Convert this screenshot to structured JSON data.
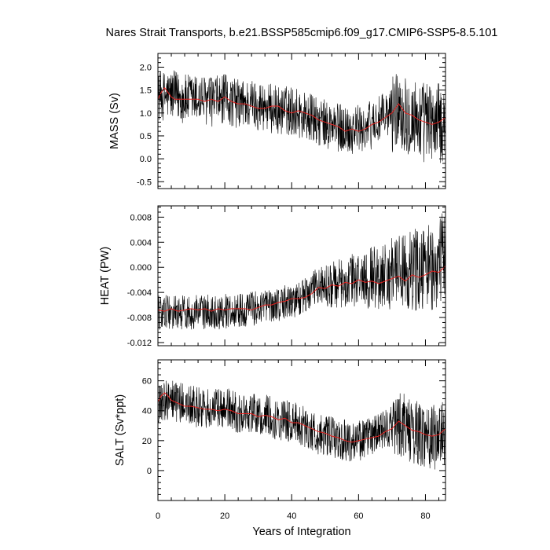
{
  "chart_data": {
    "type": "line",
    "title": "Nares Strait Transports, b.e21.BSSP585cmip6.f09_g17.CMIP6-SSP5-8.5.101",
    "xlabel": "Years of Integration",
    "xlim": [
      0,
      86
    ],
    "xticks": [
      0,
      20,
      40,
      60,
      80
    ],
    "xtick_labels": [
      "0",
      "20",
      "40",
      "60",
      "80"
    ],
    "colors": {
      "raw": "#000000",
      "smoothed": "#e8201e",
      "frame": "#000000"
    },
    "panels": [
      {
        "ylabel": "MASS (Sv)",
        "ylim": [
          -0.65,
          2.3
        ],
        "yticks": [
          -0.5,
          0.0,
          0.5,
          1.0,
          1.5,
          2.0
        ],
        "ytick_labels": [
          "-0.5",
          "0.0",
          "0.5",
          "1.0",
          "1.5",
          "2.0"
        ],
        "series": [
          {
            "x": [
              0,
              4,
              8,
              12,
              16,
              20,
              24,
              28,
              32,
              36,
              40,
              44,
              48,
              52,
              56,
              60,
              64,
              68,
              72,
              76,
              80,
              84,
              86
            ],
            "y": [
              1.35,
              1.4,
              1.3,
              1.3,
              1.25,
              1.3,
              1.2,
              1.2,
              1.15,
              1.05,
              1.05,
              0.95,
              0.8,
              0.7,
              0.65,
              0.65,
              0.75,
              0.9,
              1.15,
              0.9,
              0.8,
              0.75,
              0.85
            ]
          },
          {
            "x": [
              0,
              1,
              2,
              3,
              4,
              5,
              6,
              8,
              10,
              12,
              14,
              16,
              18,
              20,
              22,
              24,
              26,
              28,
              30,
              32,
              34,
              36,
              38,
              40,
              42,
              44,
              46,
              48,
              50,
              52,
              54,
              56,
              58,
              60,
              62,
              64,
              66,
              68,
              70,
              72,
              74,
              76,
              78,
              80,
              82,
              84,
              86
            ],
            "y": [
              1.3,
              1.45,
              1.55,
              1.45,
              1.35,
              1.3,
              1.3,
              1.3,
              1.3,
              1.3,
              1.25,
              1.3,
              1.25,
              1.35,
              1.25,
              1.2,
              1.2,
              1.15,
              1.1,
              1.1,
              1.15,
              1.15,
              1.05,
              1.0,
              1.05,
              1.0,
              0.95,
              0.85,
              0.8,
              0.75,
              0.7,
              0.6,
              0.65,
              0.6,
              0.65,
              0.75,
              0.8,
              0.9,
              1.0,
              1.2,
              1.0,
              0.95,
              0.85,
              0.8,
              0.75,
              0.8,
              0.9
            ]
          }
        ]
      },
      {
        "ylabel": "HEAT (PW)",
        "ylim": [
          -0.0125,
          0.0098
        ],
        "yticks": [
          -0.012,
          -0.008,
          -0.004,
          0.0,
          0.004,
          0.008
        ],
        "ytick_labels": [
          "-0.012",
          "-0.008",
          "-0.004",
          "0.000",
          "0.004",
          "0.008"
        ],
        "series": [
          {
            "x": [
              0,
              4,
              8,
              12,
              16,
              20,
              24,
              28,
              32,
              36,
              40,
              44,
              48,
              52,
              56,
              60,
              64,
              68,
              72,
              76,
              80,
              84,
              86
            ],
            "y": [
              -0.0072,
              -0.007,
              -0.0072,
              -0.007,
              -0.0072,
              -0.007,
              -0.0068,
              -0.0066,
              -0.0062,
              -0.0058,
              -0.0055,
              -0.0045,
              -0.003,
              -0.0028,
              -0.0025,
              -0.002,
              -0.0015,
              -0.0012,
              -0.0008,
              -0.0005,
              0.0,
              0.0005,
              0.0015
            ]
          },
          {
            "x": [
              0,
              2,
              4,
              6,
              8,
              10,
              12,
              14,
              16,
              18,
              20,
              22,
              24,
              26,
              28,
              30,
              32,
              34,
              36,
              38,
              40,
              42,
              44,
              46,
              48,
              50,
              52,
              54,
              56,
              58,
              60,
              62,
              64,
              66,
              68,
              70,
              72,
              74,
              76,
              78,
              80,
              82,
              84,
              86
            ],
            "y": [
              -0.0068,
              -0.007,
              -0.0066,
              -0.007,
              -0.0068,
              -0.0066,
              -0.0068,
              -0.0066,
              -0.007,
              -0.0066,
              -0.0068,
              -0.0066,
              -0.0066,
              -0.0066,
              -0.0068,
              -0.0064,
              -0.006,
              -0.006,
              -0.0056,
              -0.0054,
              -0.005,
              -0.005,
              -0.0048,
              -0.0042,
              -0.0032,
              -0.0034,
              -0.0028,
              -0.003,
              -0.0024,
              -0.0026,
              -0.002,
              -0.0024,
              -0.0022,
              -0.0026,
              -0.0022,
              -0.0018,
              -0.0014,
              -0.0022,
              -0.0012,
              -0.0016,
              -0.0012,
              -0.0006,
              -0.0008,
              0.0002
            ]
          }
        ]
      },
      {
        "ylabel": "SALT (Sv*ppt)",
        "ylim": [
          -20,
          74
        ],
        "yticks": [
          0,
          20,
          40,
          60
        ],
        "ytick_labels": [
          "0",
          "20",
          "40",
          "60"
        ],
        "series": [
          {
            "x": [
              0,
              4,
              8,
              12,
              16,
              20,
              24,
              28,
              32,
              36,
              40,
              44,
              48,
              52,
              56,
              60,
              64,
              68,
              72,
              76,
              80,
              84,
              86
            ],
            "y": [
              46,
              48,
              44,
              42,
              40,
              42,
              38,
              38,
              37,
              34,
              33,
              29,
              24,
              22,
              20,
              20,
              23,
              27,
              32,
              26,
              24,
              22,
              26
            ]
          },
          {
            "x": [
              0,
              1,
              2,
              3,
              4,
              6,
              8,
              10,
              12,
              14,
              16,
              18,
              20,
              22,
              24,
              26,
              28,
              30,
              32,
              34,
              36,
              38,
              40,
              42,
              44,
              46,
              48,
              50,
              52,
              54,
              56,
              58,
              60,
              62,
              64,
              66,
              68,
              70,
              72,
              74,
              76,
              78,
              80,
              82,
              84,
              86
            ],
            "y": [
              46,
              50,
              52,
              50,
              47,
              45,
              43,
              43,
              42,
              41,
              41,
              40,
              41,
              40,
              38,
              38,
              38,
              36,
              37,
              36,
              34,
              35,
              32,
              32,
              30,
              28,
              26,
              25,
              23,
              22,
              20,
              19,
              20,
              21,
              22,
              23,
              26,
              28,
              33,
              30,
              27,
              26,
              24,
              23,
              24,
              28
            ]
          }
        ]
      }
    ]
  }
}
